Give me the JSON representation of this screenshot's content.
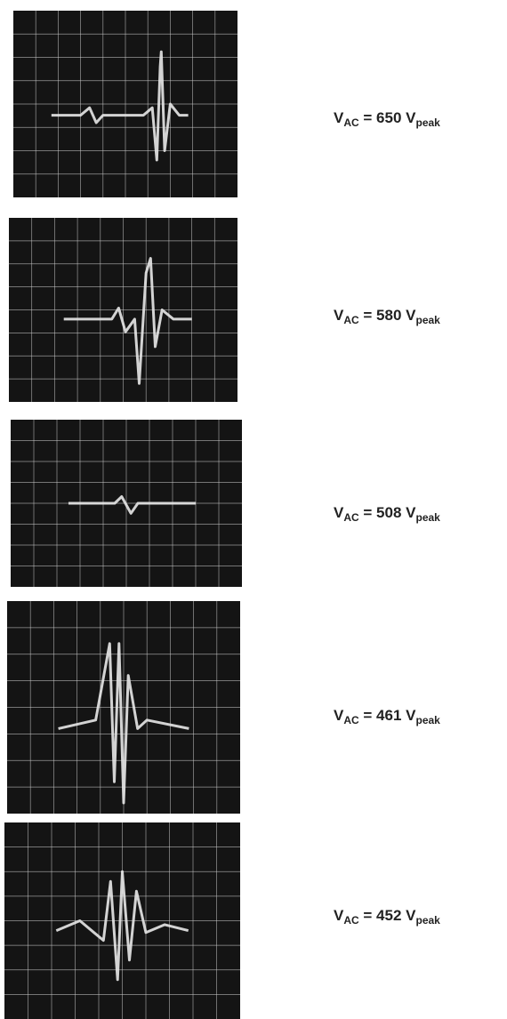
{
  "panels": [
    {
      "symbol": "V",
      "symbol_sub": "AC",
      "equation": " = 650 V",
      "unit_sub": "peak"
    },
    {
      "symbol": "V",
      "symbol_sub": "AC",
      "equation": " = 580 V",
      "unit_sub": "peak"
    },
    {
      "symbol": "V",
      "symbol_sub": "AC",
      "equation": " = 508 V",
      "unit_sub": "peak"
    },
    {
      "symbol": "V",
      "symbol_sub": "AC",
      "equation": " = 461 V",
      "unit_sub": "peak"
    },
    {
      "symbol": "V",
      "symbol_sub": "AC",
      "equation": " = 452 V",
      "unit_sub": "peak"
    }
  ]
}
